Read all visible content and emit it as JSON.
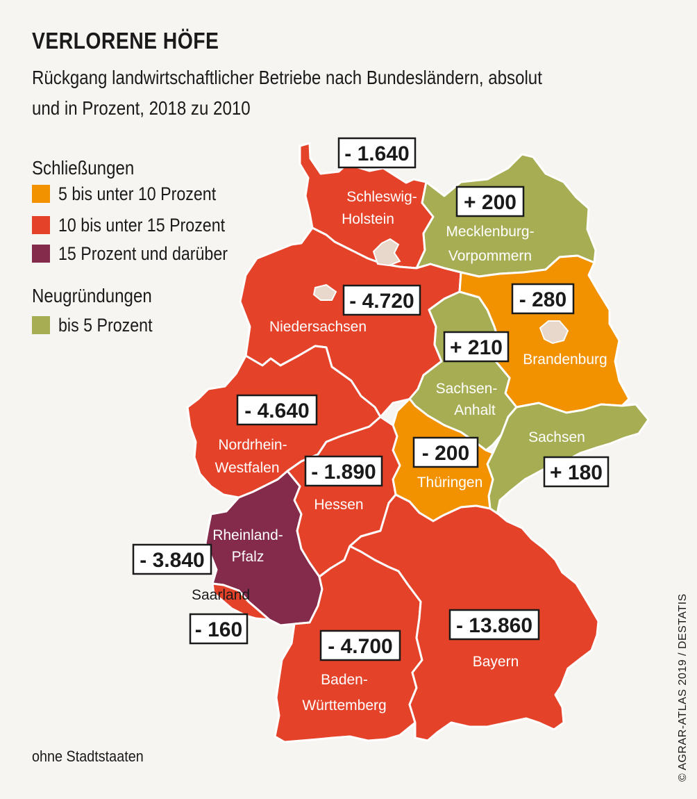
{
  "title": "VERLORENE HÖFE",
  "subtitle": "Rückgang landwirtschaftlicher Betriebe nach Bundesländern, absolut und in Prozent, 2018 zu 2010",
  "legend": {
    "closures_heading": "Schließungen",
    "closures": [
      {
        "label": "5 bis unter 10 Prozent",
        "color": "#f39200"
      },
      {
        "label": "10 bis unter 15 Prozent",
        "color": "#e5422a"
      },
      {
        "label": "15 Prozent und darüber",
        "color": "#842a4a"
      }
    ],
    "foundings_heading": "Neugründungen",
    "foundings": [
      {
        "label": "bis 5 Prozent",
        "color": "#a6ad53"
      }
    ]
  },
  "city_state_color": "#e7d8cb",
  "states": [
    {
      "key": "sh",
      "name_lines": [
        "Schleswig-",
        "Holstein"
      ],
      "value": "- 1.640",
      "category": "10 bis unter 15 Prozent"
    },
    {
      "key": "mv",
      "name_lines": [
        "Mecklenburg-",
        "Vorpommern"
      ],
      "value": "+ 200",
      "category": "bis 5 Prozent"
    },
    {
      "key": "ni",
      "name_lines": [
        "Niedersachsen"
      ],
      "value": "- 4.720",
      "category": "10 bis unter 15 Prozent"
    },
    {
      "key": "bb",
      "name_lines": [
        "Brandenburg"
      ],
      "value": "- 280",
      "category": "5 bis unter 10 Prozent"
    },
    {
      "key": "st",
      "name_lines": [
        "Sachsen-",
        "Anhalt"
      ],
      "value": "+ 210",
      "category": "bis 5 Prozent"
    },
    {
      "key": "nw",
      "name_lines": [
        "Nordrhein-",
        "Westfalen"
      ],
      "value": "- 4.640",
      "category": "10 bis unter 15 Prozent"
    },
    {
      "key": "sn",
      "name_lines": [
        "Sachsen"
      ],
      "value": "+ 180",
      "category": "bis 5 Prozent"
    },
    {
      "key": "th",
      "name_lines": [
        "Thüringen"
      ],
      "value": "- 200",
      "category": "5 bis unter 10 Prozent"
    },
    {
      "key": "he",
      "name_lines": [
        "Hessen"
      ],
      "value": "- 1.890",
      "category": "10 bis unter 15 Prozent"
    },
    {
      "key": "rp",
      "name_lines": [
        "Rheinland-",
        "Pfalz"
      ],
      "value": "- 3.840",
      "category": "15 Prozent und darüber"
    },
    {
      "key": "sl",
      "name_lines": [
        "Saarland"
      ],
      "value": "- 160",
      "category": "10 bis unter 15 Prozent"
    },
    {
      "key": "bw",
      "name_lines": [
        "Baden-",
        "Württemberg"
      ],
      "value": "- 4.700",
      "category": "10 bis unter 15 Prozent"
    },
    {
      "key": "by",
      "name_lines": [
        "Bayern"
      ],
      "value": "- 13.860",
      "category": "10 bis unter 15 Prozent"
    }
  ],
  "footnote": "ohne Stadtstaaten",
  "source": "© AGRAR-ATLAS 2019 / DESTATIS"
}
